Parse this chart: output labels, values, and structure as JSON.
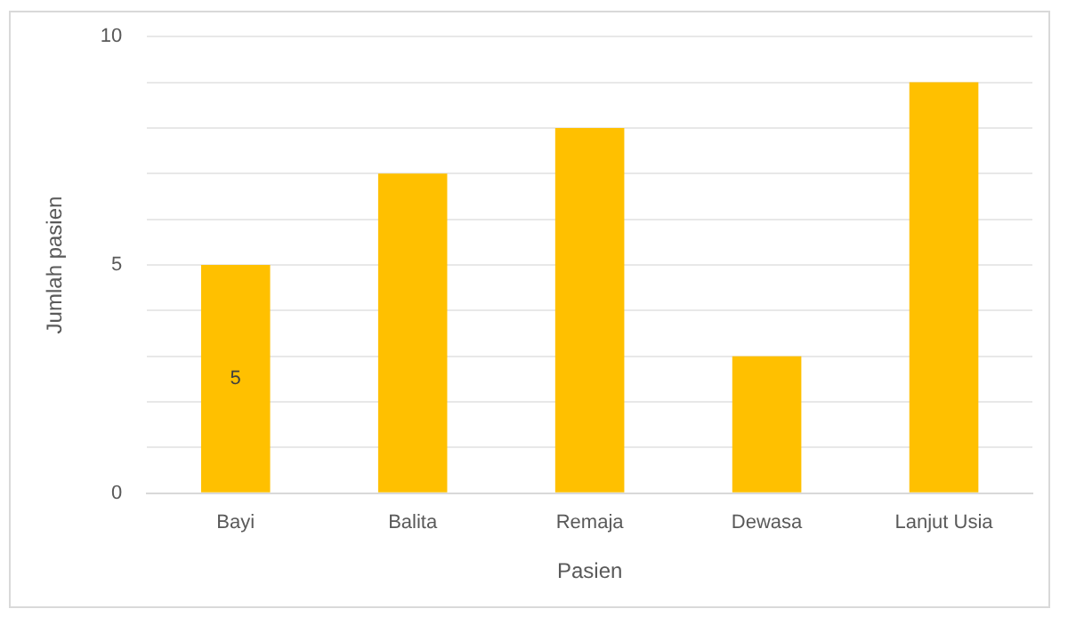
{
  "chart_data": {
    "type": "bar",
    "xlabel": "Pasien",
    "ylabel": "Jumlah pasien",
    "categories": [
      "Bayi",
      "Balita",
      "Remaja",
      "Dewasa",
      "Lanjut Usia"
    ],
    "values": [
      5,
      7,
      8,
      3,
      9
    ],
    "color": "#ffc000",
    "value_labels": [
      "5",
      null,
      null,
      null,
      null
    ],
    "ylim": [
      0,
      10
    ],
    "yticks": [
      0,
      {
        "value": 1,
        "label": null
      },
      {
        "value": 2,
        "label": null
      },
      {
        "value": 3,
        "label": null
      },
      {
        "value": 4,
        "label": null
      },
      5,
      {
        "value": 6,
        "label": null
      },
      {
        "value": 7,
        "label": null
      },
      {
        "value": 8,
        "label": null
      },
      {
        "value": 9,
        "label": null
      },
      10
    ],
    "grid": "y",
    "legend": false
  }
}
